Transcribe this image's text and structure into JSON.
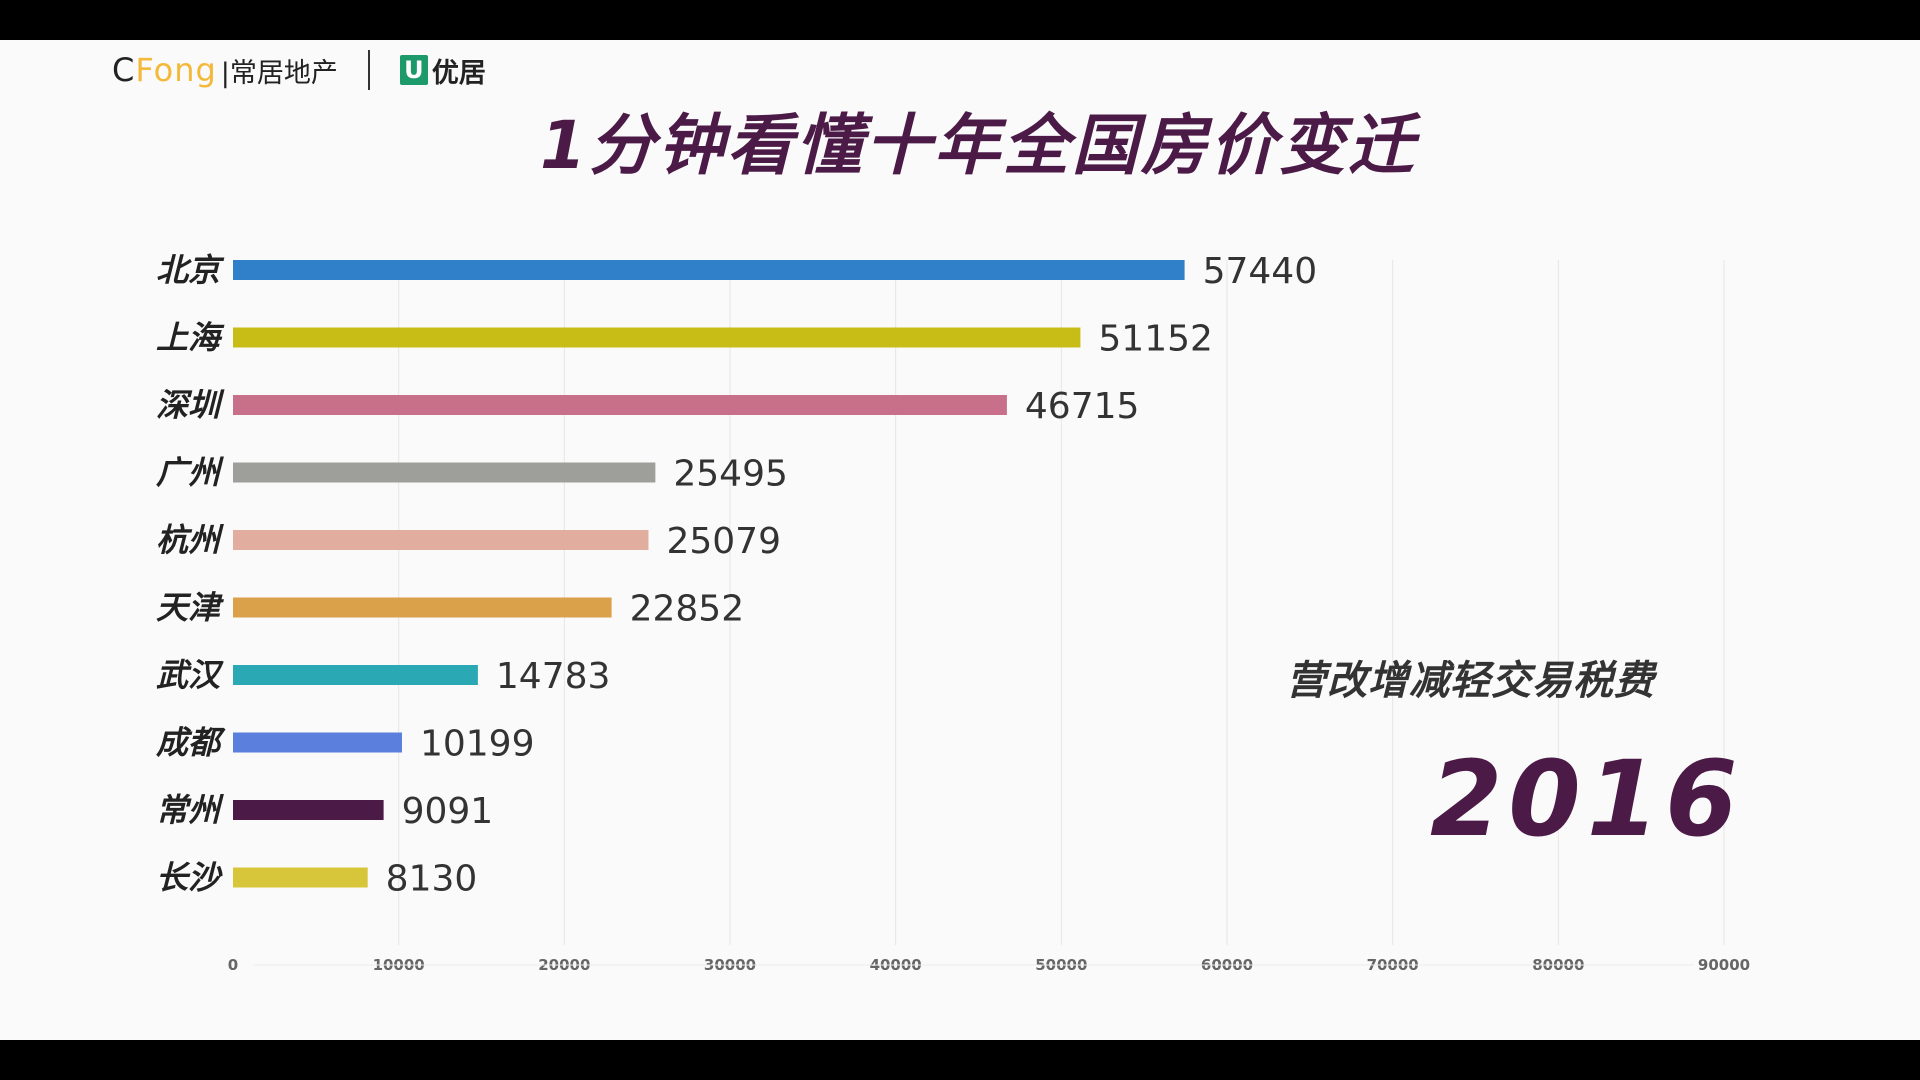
{
  "branding": {
    "cfong_letter_c": "C",
    "cfong_rest": "Fong",
    "cfong_cn": "|常居地产",
    "youju_mark": "U",
    "youju_text": "优居"
  },
  "colors": {
    "title": "#4b1a47",
    "background": "#fafafa"
  },
  "chart_data": {
    "type": "bar",
    "orientation": "horizontal",
    "title": "1分钟看懂十年全国房价变迁",
    "annotation": "营改增减轻交易税费",
    "year": "2016",
    "categories": [
      "北京",
      "上海",
      "深圳",
      "广州",
      "杭州",
      "天津",
      "武汉",
      "成都",
      "常州",
      "长沙"
    ],
    "values": [
      57440,
      51152,
      46715,
      25495,
      25079,
      22852,
      14783,
      10199,
      9091,
      8130
    ],
    "value_labels": [
      "57440",
      "51152",
      "46715",
      "25495",
      "25079",
      "22852",
      "14783",
      "10199",
      "9091",
      "8130"
    ],
    "bar_colors": [
      "#2f7fc9",
      "#c8bd16",
      "#c8708a",
      "#9e9e9a",
      "#e0ad9e",
      "#dba04a",
      "#2aa8b4",
      "#5b7fdd",
      "#4b1a47",
      "#d8c63a"
    ],
    "xlim": [
      0,
      90000
    ],
    "xticks": [
      0,
      10000,
      20000,
      30000,
      40000,
      50000,
      60000,
      70000,
      80000,
      90000
    ],
    "xtick_labels": [
      "0",
      "10000",
      "20000",
      "30000",
      "40000",
      "50000",
      "60000",
      "70000",
      "80000",
      "90000"
    ],
    "grid": true
  }
}
